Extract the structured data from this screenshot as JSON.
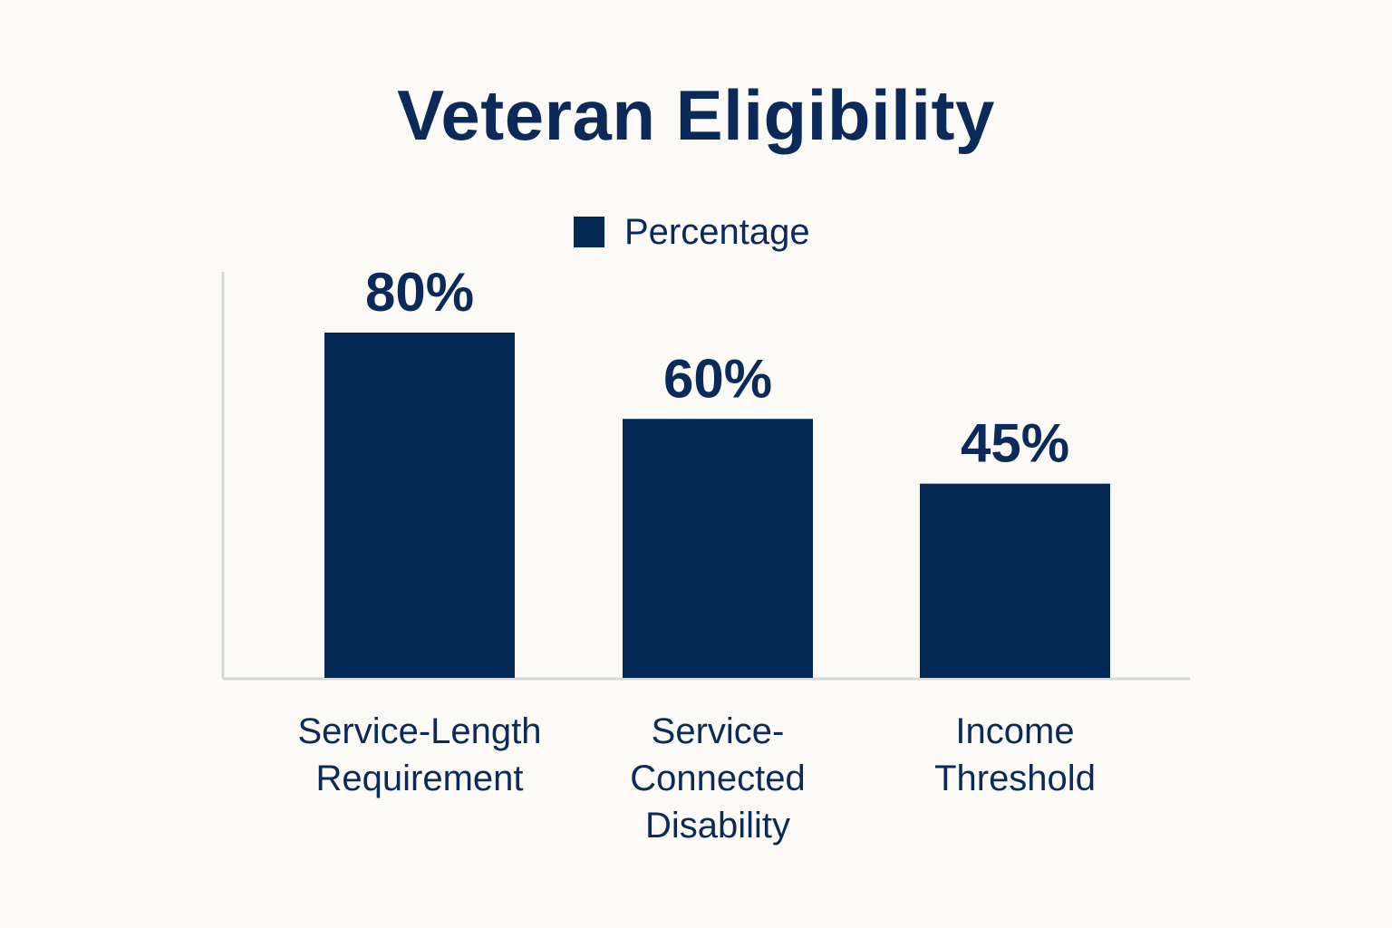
{
  "chart_data": {
    "type": "bar",
    "title": "Veteran Eligibility",
    "categories": [
      [
        "Service-Length",
        "Requirement"
      ],
      [
        "Service-",
        "Connected",
        "Disability"
      ],
      [
        "Income",
        "Threshold"
      ]
    ],
    "series": [
      {
        "name": "Percentage",
        "values": [
          80,
          60,
          45
        ],
        "labels": [
          "80%",
          "60%",
          "45%"
        ]
      }
    ],
    "ylim": [
      0,
      94
    ],
    "legend_position": "top-center",
    "grid": false,
    "colors": {
      "bar": "#022856",
      "text": "#0b2a5a",
      "axis": "#d6d6d6",
      "background": "#fbfaf6"
    }
  }
}
